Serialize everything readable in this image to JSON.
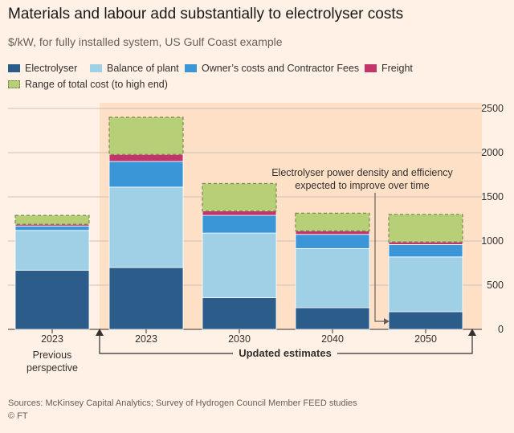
{
  "title": "Materials and labour add substantially to electrolyser costs",
  "subtitle": "$/kW, for fully installed system, US Gulf Coast example",
  "legend": {
    "electrolyser": "Electrolyser",
    "balance": "Balance of plant",
    "owners": "Owner’s costs and Contractor Fees",
    "freight": "Freight",
    "range": "Range of total cost (to high end)"
  },
  "annotation": {
    "line1": "Electrolyser power density and efficiency",
    "line2": "expected to improve over time"
  },
  "bottom_label": "Updated estimates",
  "previous_line1": "Previous",
  "previous_line2": "perspective",
  "footer": {
    "sources": "Sources: McKinsey Capital Analytics; Survey of Hydrogen Council Member FEED studies",
    "copyright": "© FT"
  },
  "colors": {
    "background": "#fff1e5",
    "highlight_band": "#fde0c6",
    "electrolyser": "#2b5c8a",
    "balance": "#a0d0e6",
    "owners": "#3a96d6",
    "freight": "#c2356b",
    "range": "#b7d077",
    "range_border": "#7b8b52",
    "grid": "#ccc1b7",
    "text": "#33302e",
    "muted_text": "#66605c"
  },
  "chart_data": {
    "type": "bar",
    "stacked": true,
    "categories": [
      "2023",
      "2023",
      "2030",
      "2040",
      "2050"
    ],
    "series": [
      {
        "name": "Electrolyser",
        "values": [
          670,
          700,
          360,
          245,
          200
        ]
      },
      {
        "name": "Balance of plant",
        "values": [
          450,
          910,
          730,
          670,
          620
        ]
      },
      {
        "name": "Owner’s costs and Contractor Fees",
        "values": [
          50,
          290,
          200,
          160,
          140
        ]
      },
      {
        "name": "Freight",
        "values": [
          20,
          80,
          50,
          40,
          30
        ]
      },
      {
        "name": "Range of total cost (to high end)",
        "values": [
          100,
          420,
          310,
          200,
          310
        ]
      }
    ],
    "ylim": [
      0,
      2500
    ],
    "yticks": [
      0,
      500,
      1000,
      1500,
      2000,
      2500
    ],
    "grid": true,
    "y_axis_side": "right",
    "legend_position": "top",
    "highlight_group": "Updated estimates",
    "highlight_categories": [
      1,
      2,
      3,
      4
    ]
  }
}
